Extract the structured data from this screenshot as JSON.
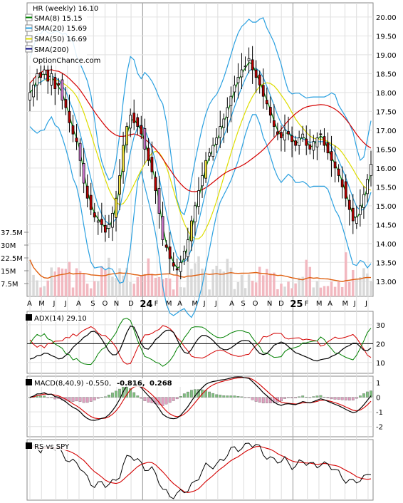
{
  "chart_data": [
    {
      "type": "candlestick",
      "title": "HR (weekly) 16.10",
      "watermark": "OptionChance.com",
      "price_ticks": [
        13.0,
        13.5,
        14.0,
        14.5,
        15.0,
        15.5,
        16.0,
        16.5,
        17.0,
        17.5,
        18.0,
        18.5,
        19.0,
        19.5,
        20.0
      ],
      "price_tick_labels": [
        "13.00",
        "13.50",
        "14.00",
        "14.50",
        "15.00",
        "15.50",
        "16.00",
        "16.50",
        "17.00",
        "17.50",
        "18.00",
        "18.50",
        "19.00",
        "19.50",
        "20.00"
      ],
      "ylim": [
        12.6,
        20.3
      ],
      "x_labels": [
        "A",
        "M",
        "J",
        "J",
        "A",
        "S",
        "O",
        "N",
        "D",
        "24",
        "F",
        "M",
        "A",
        "M",
        "J",
        "J",
        "A",
        "S",
        "O",
        "N",
        "D",
        "25",
        "F",
        "M",
        "A",
        "M",
        "J",
        "J"
      ],
      "x_label_weeks": [
        0,
        4,
        9,
        13,
        17,
        22,
        26,
        30,
        35,
        39,
        44,
        48,
        52,
        57,
        61,
        65,
        70,
        74,
        78,
        83,
        87,
        91,
        96,
        100,
        104,
        109,
        113,
        117
      ],
      "bold_labels": [
        "24",
        "25"
      ],
      "legend": [
        {
          "label": "SMA(8) 15.15",
          "color": "#008000"
        },
        {
          "label": "SMA(20) 15.69",
          "color": "#2aa0e0"
        },
        {
          "label": "SMA(50) 16.69",
          "color": "#dddd00"
        },
        {
          "label": "SMA(200)",
          "color": "#d40000"
        }
      ],
      "closes": [
        18.0,
        18.2,
        18.5,
        18.4,
        18.6,
        18.3,
        18.5,
        18.1,
        18.2,
        17.8,
        17.6,
        17.2,
        16.9,
        16.7,
        16.2,
        15.6,
        15.2,
        14.9,
        14.7,
        14.6,
        14.5,
        14.3,
        14.5,
        14.8,
        15.2,
        15.8,
        16.6,
        17.1,
        17.4,
        17.2,
        17.1,
        16.9,
        16.5,
        16.2,
        15.9,
        15.4,
        14.8,
        14.1,
        13.9,
        13.6,
        13.4,
        13.3,
        13.5,
        13.8,
        14.1,
        14.6,
        15.0,
        15.4,
        15.8,
        16.2,
        16.4,
        16.6,
        16.8,
        17.1,
        17.3,
        17.6,
        17.9,
        18.2,
        18.4,
        18.6,
        18.7,
        18.9,
        18.6,
        18.4,
        18.2,
        17.9,
        17.7,
        17.4,
        17.1,
        16.9,
        16.8,
        17.0,
        16.9,
        16.7,
        16.6,
        16.8,
        16.9,
        16.6,
        16.5,
        16.7,
        16.8,
        16.9,
        16.6,
        16.4,
        16.2,
        16.0,
        15.8,
        15.5,
        15.2,
        14.9,
        14.6,
        14.7,
        15.0,
        15.3,
        15.7,
        16.1
      ],
      "volume": {
        "ticks": [
          7.5,
          15,
          22.5,
          30,
          37.5
        ],
        "tick_labels": [
          "7.5M",
          "15M",
          "22.5M",
          "30M",
          "37.5M"
        ],
        "ylim": [
          0,
          40
        ],
        "avg_color": "#e06010"
      },
      "colors": {
        "up": "#ffffff",
        "down": "#c00000",
        "up_strong": "#f0e040",
        "down_strong": "#e080e0"
      }
    },
    {
      "type": "line",
      "title": "ADX(14) 29.10",
      "ticks": [
        10,
        20,
        30
      ],
      "tick_labels": [
        "10",
        "20",
        "30"
      ],
      "ylim": [
        5,
        36
      ],
      "reference": 20,
      "series": [
        {
          "name": "ADX",
          "color": "#000000"
        },
        {
          "name": "+DI",
          "color": "#008000"
        },
        {
          "name": "-DI",
          "color": "#d40000"
        }
      ]
    },
    {
      "type": "line",
      "title": "MACD(8,40,9) -0.550,",
      "values_text": [
        "-0.816,",
        "0.268"
      ],
      "values_colors": [
        "#d40000",
        "#2060c0"
      ],
      "ticks": [
        -2,
        -1,
        0,
        1
      ],
      "tick_labels": [
        "-2",
        "-1",
        "0",
        "1"
      ],
      "ylim": [
        -2.6,
        1.3
      ],
      "series": [
        {
          "name": "MACD",
          "color": "#000000"
        },
        {
          "name": "Signal",
          "color": "#d40000"
        },
        {
          "name": "Histogram",
          "color": "#80c080"
        }
      ]
    },
    {
      "type": "line",
      "title": "RS vs SPY",
      "series": [
        {
          "name": "RS",
          "color": "#000000"
        },
        {
          "name": "RS MA",
          "color": "#d40000"
        }
      ]
    }
  ]
}
